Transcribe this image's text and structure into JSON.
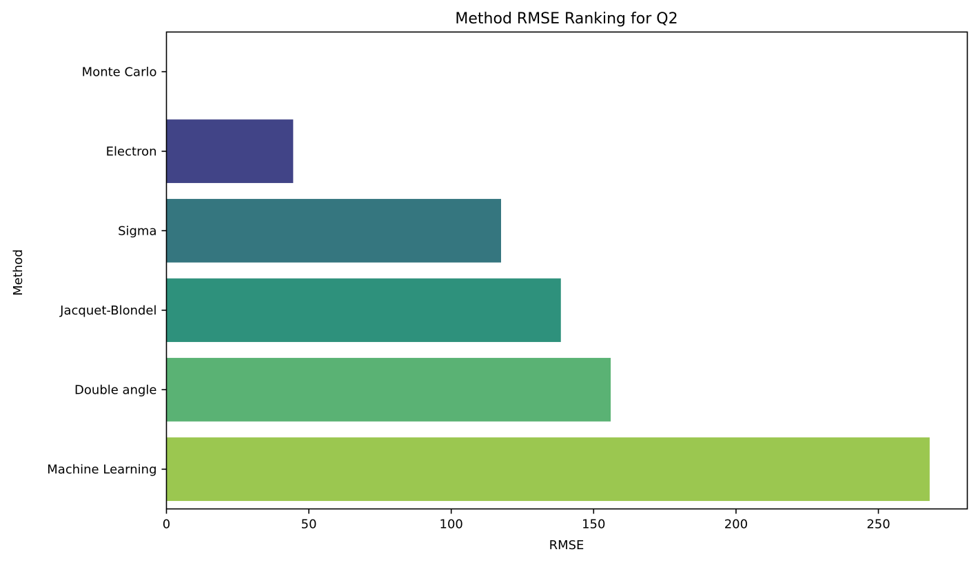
{
  "chart_data": {
    "type": "bar",
    "orientation": "horizontal",
    "title": "Method RMSE Ranking for Q2",
    "xlabel": "RMSE",
    "ylabel": "Method",
    "xlim": [
      0,
      275
    ],
    "xticks": [
      0,
      50,
      100,
      150,
      200,
      250
    ],
    "grid": false,
    "categories": [
      "Monte Carlo",
      "Electron",
      "Sigma",
      "Jacquet-Blondel",
      "Double angle",
      "Machine Learning"
    ],
    "values": [
      0,
      44.5,
      117.5,
      138.5,
      156,
      268
    ],
    "colors": [
      "#482475",
      "#414487",
      "#35767f",
      "#2e917c",
      "#5ab274",
      "#9bc750"
    ]
  }
}
